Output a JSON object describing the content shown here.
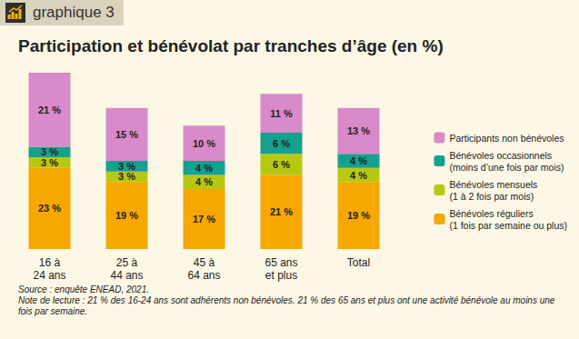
{
  "chart_data": {
    "type": "bar",
    "title": "Participation et bénévolat par tranches d’âge (en %)",
    "annotations": [
      "graphique 3",
      "Source : enquête ENEAD, 2021.",
      "Note de lecture : 21 % des 16-24 ans sont adhérents non bénévoles. 21 % des 65 ans et plus ont une activité bénévole au moins une fois par semaine."
    ],
    "categories": [
      "16 à\n24 ans",
      "25 à\n44 ans",
      "45 à\n64 ans",
      "65 ans\net plus",
      "Total"
    ],
    "stacked": true,
    "data_labels": true,
    "grid": false,
    "tick_labels": "x",
    "legend": "right",
    "ylim": [
      0,
      50
    ],
    "yticks": [
      0,
      50
    ],
    "series": [
      {
        "name": "Bénévoles réguliers\n(1 fois par semaine ou plus)",
        "color": "#f6a800",
        "values": [
          23,
          19,
          17,
          21,
          19
        ],
        "value_labels": [
          "23 %",
          "19 %",
          "17 %",
          "21 %",
          "19 %"
        ]
      },
      {
        "name": "Bénévoles mensuels\n(1 à 2 fois par mois)",
        "color": "#b8c812",
        "values": [
          3,
          3,
          4,
          6,
          4
        ],
        "value_labels": [
          "3 %",
          "3 %",
          "4 %",
          "6 %",
          "4 %"
        ]
      },
      {
        "name": "Bénévoles occasionnels\n(moins d’une fois par mois)",
        "color": "#16a08f",
        "values": [
          3,
          3,
          4,
          6,
          4
        ],
        "value_labels": [
          "3 %",
          "3 %",
          "4 %",
          "6 %",
          "4 %"
        ]
      },
      {
        "name": "Participants non bénévoles",
        "color": "#d98ac8",
        "values": [
          21,
          15,
          10,
          11,
          13
        ],
        "value_labels": [
          "21 %",
          "15 %",
          "10 %",
          "11 %",
          "13 %"
        ]
      }
    ]
  }
}
